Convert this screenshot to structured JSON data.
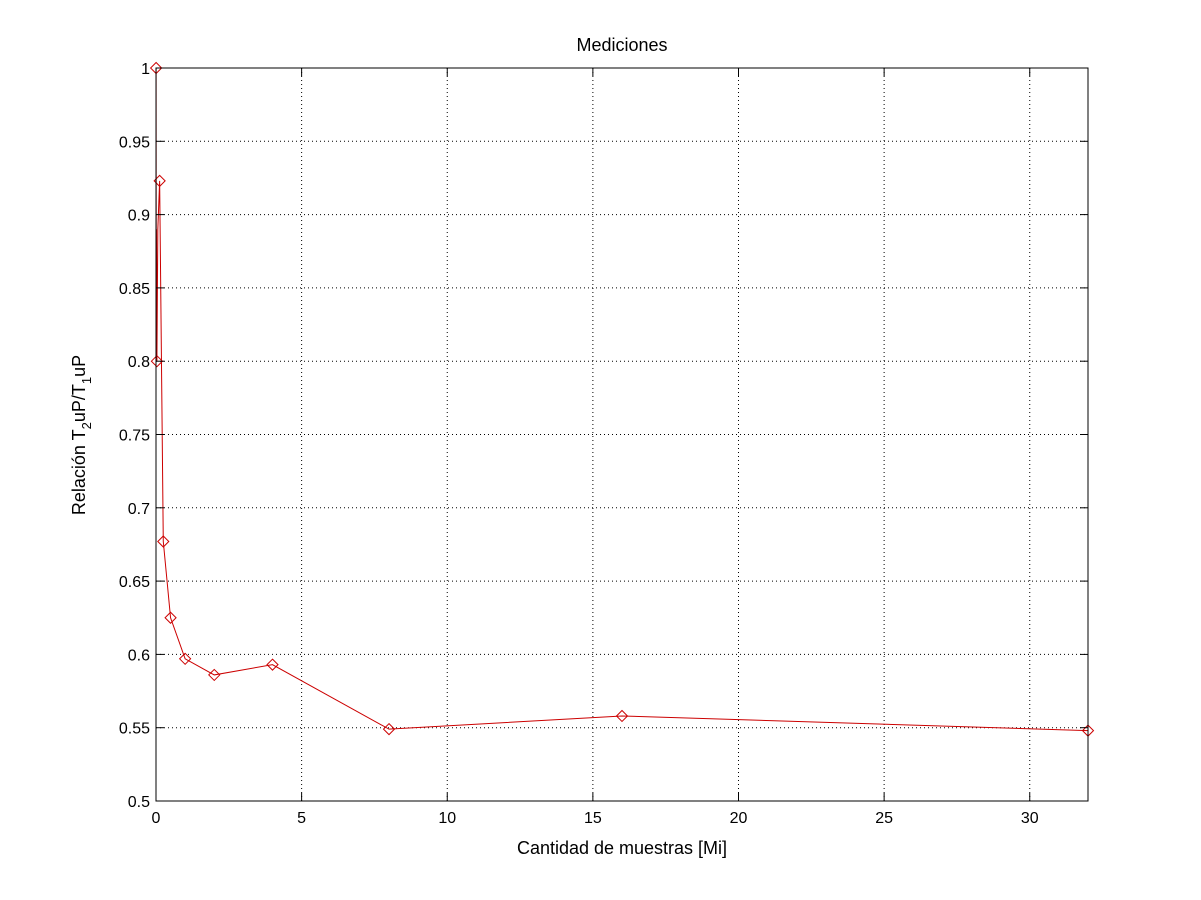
{
  "chart_data": {
    "type": "line",
    "title": "Mediciones",
    "xlabel": "Cantidad de muestras [Mi]",
    "ylabel": {
      "parts": [
        {
          "text": "Relación T",
          "sub": false
        },
        {
          "text": "2",
          "sub": true
        },
        {
          "text": "uP/T",
          "sub": false
        },
        {
          "text": "1",
          "sub": true
        },
        {
          "text": "uP",
          "sub": false
        }
      ]
    },
    "xlim": [
      0,
      32
    ],
    "ylim": [
      0.5,
      1
    ],
    "x_ticks": [
      0,
      5,
      10,
      15,
      20,
      25,
      30
    ],
    "x_tick_labels": [
      "0",
      "5",
      "10",
      "15",
      "20",
      "25",
      "30"
    ],
    "y_ticks": [
      0.5,
      0.55,
      0.6,
      0.65,
      0.7,
      0.75,
      0.8,
      0.85,
      0.9,
      0.95,
      1
    ],
    "y_tick_labels": [
      "0.5",
      "0.55",
      "0.6",
      "0.65",
      "0.7",
      "0.75",
      "0.8",
      "0.85",
      "0.9",
      "0.95",
      "1"
    ],
    "grid": true,
    "series": [
      {
        "color": "#cc0000",
        "marker": "diamond",
        "x": [
          0.0039,
          0.0078,
          0.0156,
          0.0313,
          0.0625,
          0.125,
          0.25,
          0.5,
          1,
          2,
          4,
          8,
          16,
          32
        ],
        "y": [
          1.0,
          0.83,
          0.89,
          0.8,
          0.89,
          0.923,
          0.677,
          0.625,
          0.597,
          0.586,
          0.593,
          0.549,
          0.558,
          0.548
        ]
      }
    ]
  }
}
